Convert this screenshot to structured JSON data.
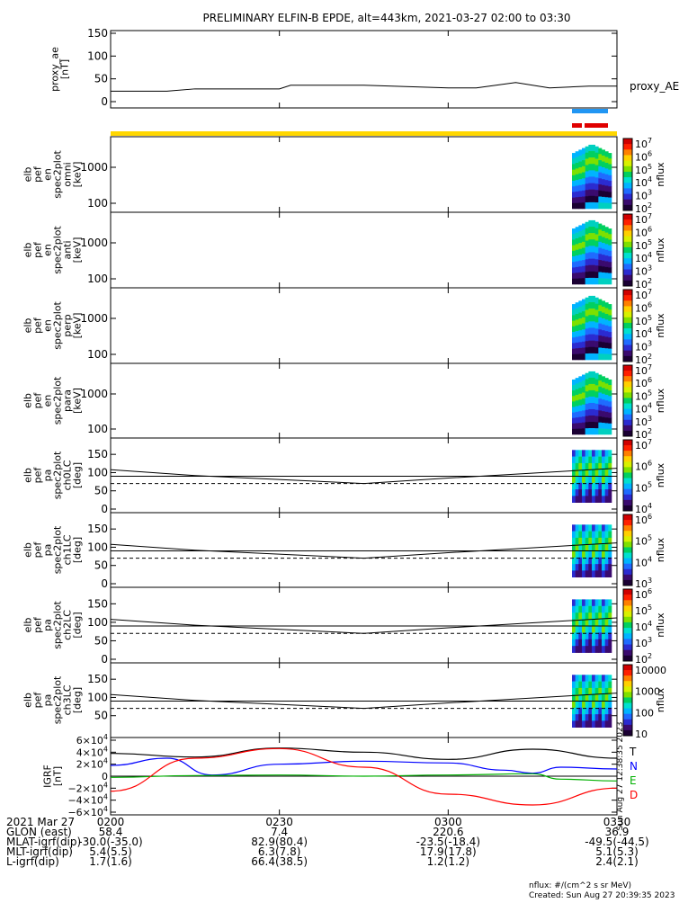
{
  "title": "PRELIMINARY ELFIN-B EPDE, alt=443km, 2021-03-27 02:00 to 03:30",
  "colors": {
    "fg": "#000000",
    "bar_blue": "#2196f3",
    "bar_red": "#e00000",
    "bar_yellow": "#ffd700",
    "comp_T": "#000000",
    "comp_N": "#0000ff",
    "comp_E": "#00b000",
    "comp_D": "#ff0000"
  },
  "colormap": [
    "#1a0033",
    "#3a0a6e",
    "#2b2bd0",
    "#1f6bff",
    "#00b4ff",
    "#00e0d0",
    "#00d060",
    "#7ee000",
    "#d8f000",
    "#ffd000",
    "#ff8000",
    "#ff2000",
    "#d00000"
  ],
  "panels": [
    {
      "id": "proxy_ae",
      "ylabel": [
        "proxy_ae",
        "[nT]"
      ],
      "side_label": "proxy_AE",
      "type": "line",
      "yticks": [
        "150",
        "100",
        "50",
        "0"
      ]
    },
    {
      "id": "omni",
      "ylabel": [
        "elb",
        "pef",
        "en",
        "spec2plot",
        "omni",
        "[keV]"
      ],
      "type": "spectrogram",
      "yticks": [
        "1000",
        "100"
      ],
      "cbar": [
        "10^7",
        "10^6",
        "10^5",
        "10^4",
        "10^3",
        "10^2"
      ],
      "cbar_label": "nflux"
    },
    {
      "id": "anti",
      "ylabel": [
        "elb",
        "pef",
        "en",
        "spec2plot",
        "anti",
        "[keV]"
      ],
      "type": "spectrogram",
      "yticks": [
        "1000",
        "100"
      ],
      "cbar": [
        "10^7",
        "10^6",
        "10^5",
        "10^4",
        "10^3",
        "10^2"
      ],
      "cbar_label": "nflux"
    },
    {
      "id": "perp",
      "ylabel": [
        "elb",
        "pef",
        "en",
        "spec2plot",
        "perp",
        "[keV]"
      ],
      "type": "spectrogram",
      "yticks": [
        "1000",
        "100"
      ],
      "cbar": [
        "10^7",
        "10^6",
        "10^5",
        "10^4",
        "10^3",
        "10^2"
      ],
      "cbar_label": "nflux"
    },
    {
      "id": "para",
      "ylabel": [
        "elb",
        "pef",
        "en",
        "spec2plot",
        "para",
        "[keV]"
      ],
      "type": "spectrogram",
      "yticks": [
        "1000",
        "100"
      ],
      "cbar": [
        "10^7",
        "10^6",
        "10^5",
        "10^4",
        "10^3",
        "10^2"
      ],
      "cbar_label": "nflux"
    },
    {
      "id": "ch0",
      "ylabel": [
        "elb",
        "pef",
        "pa",
        "spec2plot",
        "ch0LC",
        "[deg]"
      ],
      "type": "pitch",
      "yticks": [
        "150",
        "100",
        "50",
        "0"
      ],
      "cbar": [
        "10^7",
        "10^6",
        "10^5",
        "10^4"
      ],
      "cbar_label": "nflux"
    },
    {
      "id": "ch1",
      "ylabel": [
        "elb",
        "pef",
        "pa",
        "spec2plot",
        "ch1LC",
        "[deg]"
      ],
      "type": "pitch",
      "yticks": [
        "150",
        "100",
        "50",
        "0"
      ],
      "cbar": [
        "10^6",
        "10^5",
        "10^4",
        "10^3"
      ],
      "cbar_label": "nflux"
    },
    {
      "id": "ch2",
      "ylabel": [
        "elb",
        "pef",
        "pa",
        "spec2plot",
        "ch2LC",
        "[deg]"
      ],
      "type": "pitch",
      "yticks": [
        "150",
        "100",
        "50",
        "0"
      ],
      "cbar": [
        "10^6",
        "10^5",
        "10^4",
        "10^3",
        "10^2"
      ],
      "cbar_label": "nflux"
    },
    {
      "id": "ch3",
      "ylabel": [
        "elb",
        "pef",
        "pa",
        "spec2plot",
        "ch3LC",
        "[deg]"
      ],
      "type": "pitch",
      "yticks": [
        "150",
        "100",
        "50"
      ],
      "cbar": [
        "10000",
        "1000",
        "100",
        "10"
      ],
      "cbar_label": "nflux"
    },
    {
      "id": "igrf",
      "ylabel": [
        "IGRF",
        "[nT]"
      ],
      "type": "lines",
      "yticks": [
        "6×10^4",
        "4×10^4",
        "2×10^4",
        "0",
        "−2×10^4",
        "−4×10^4",
        "−6×10^4"
      ],
      "comps": [
        "T",
        "N",
        "E",
        "D"
      ],
      "vert_note": "Sun Aug 27 12:38:35 2023"
    }
  ],
  "x_ticks": [
    "0200",
    "0230",
    "0300",
    "0330"
  ],
  "ephem": {
    "labels": [
      "2021 Mar 27",
      "GLON (east)",
      "MLAT-igrf(dip)",
      "MLT-igrf(dip)",
      "L-igrf(dip)"
    ],
    "rows": [
      [
        "58.4",
        "7.4",
        "220.6",
        "36.9"
      ],
      [
        "-30.0(-35.0)",
        "82.9(80.4)",
        "-23.5(-18.4)",
        "-49.5(-44.5)"
      ],
      [
        "5.4(5.5)",
        "6.3(7.8)",
        "17.9(17.8)",
        "5.1(5.3)"
      ],
      [
        "1.7(1.6)",
        "66.4(38.5)",
        "1.2(1.2)",
        "2.4(2.1)"
      ]
    ]
  },
  "footer": {
    "units": "nflux: #/(cm^2 s sr MeV)",
    "created": "Created: Sun Aug 27 20:39:35 2023"
  },
  "chart_data": {
    "type": "line",
    "title": "PRELIMINARY ELFIN-B EPDE, alt=443km, 2021-03-27 02:00 to 03:30",
    "x": [
      "0200",
      "0215",
      "0230",
      "0245",
      "0300",
      "0315",
      "0330"
    ],
    "xlim": [
      "0200",
      "0330"
    ],
    "series": [
      {
        "name": "proxy_AE",
        "x": [
          "0200",
          "0210",
          "0215",
          "0230",
          "0232",
          "0245",
          "0300",
          "0305",
          "0312",
          "0318",
          "0325",
          "0330"
        ],
        "values": [
          23,
          23,
          28,
          28,
          36,
          36,
          30,
          30,
          42,
          30,
          34,
          34
        ],
        "ylim": [
          0,
          150
        ],
        "ylabel": "proxy_ae [nT]"
      },
      {
        "name": "T",
        "x": [
          "0200",
          "0215",
          "0230",
          "0245",
          "0300",
          "0315",
          "0330"
        ],
        "values": [
          38000,
          32000,
          47000,
          40000,
          28000,
          45000,
          30000
        ],
        "ylabel": "IGRF [nT]",
        "ylim": [
          -60000,
          60000
        ]
      },
      {
        "name": "N",
        "x": [
          "0200",
          "0210",
          "0218",
          "0230",
          "0245",
          "0300",
          "0310",
          "0315",
          "0320",
          "0330"
        ],
        "values": [
          18000,
          30000,
          2000,
          20000,
          25000,
          22000,
          10000,
          5000,
          15000,
          12000
        ]
      },
      {
        "name": "E",
        "x": [
          "0200",
          "0215",
          "0230",
          "0245",
          "0300",
          "0315",
          "0320",
          "0330"
        ],
        "values": [
          -2000,
          1000,
          2000,
          0,
          2000,
          4000,
          -5000,
          -8000
        ]
      },
      {
        "name": "D",
        "x": [
          "0200",
          "0215",
          "0230",
          "0245",
          "0300",
          "0315",
          "0330"
        ],
        "values": [
          -25000,
          30000,
          46000,
          15000,
          -30000,
          -48000,
          -20000
        ]
      }
    ],
    "pitch_angle_lines": {
      "ylabel": "[deg]",
      "ylim": [
        0,
        180
      ],
      "solid_deg": [
        108,
        92,
        70,
        85,
        112
      ],
      "dashed_deg": 70,
      "x": [
        "0200",
        "0215",
        "0245",
        "0300",
        "0330"
      ]
    }
  }
}
